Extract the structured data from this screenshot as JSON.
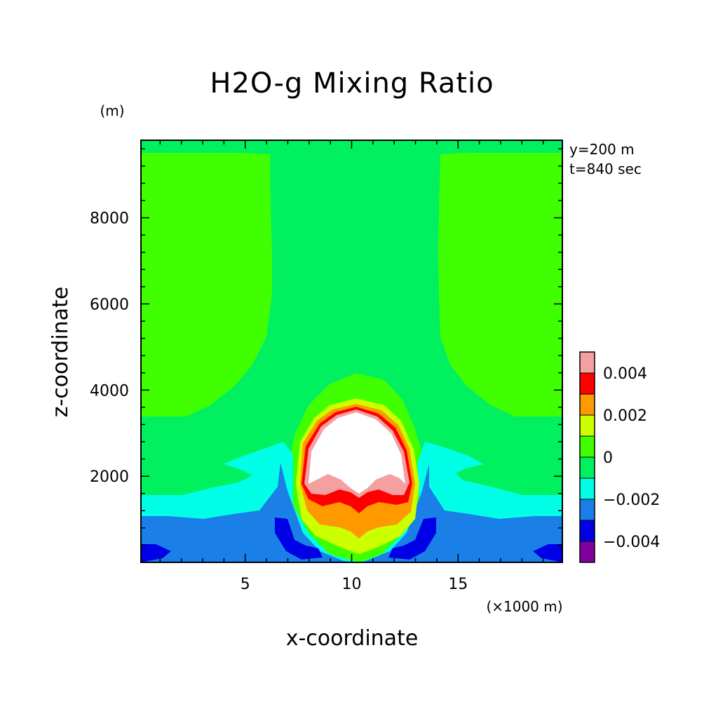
{
  "chart_data": {
    "type": "heatmap",
    "title": "H2O-g Mixing Ratio",
    "xlabel": "x-coordinate",
    "ylabel": "z-coordinate",
    "x_unit": "(×1000 m)",
    "y_unit": "(m)",
    "annotations": [
      "y=200 m",
      "t=840 sec"
    ],
    "xlim": [
      0.1,
      19.9
    ],
    "ylim": [
      0,
      9800
    ],
    "xticks": [
      5,
      10,
      15
    ],
    "xtick_labels": [
      "5",
      "10",
      "15"
    ],
    "yticks": [
      2000,
      4000,
      6000,
      8000
    ],
    "ytick_labels": [
      "2000",
      "4000",
      "6000",
      "8000"
    ],
    "colorbar": {
      "levels": [
        -0.005,
        -0.004,
        -0.003,
        -0.002,
        -0.001,
        0,
        0.001,
        0.002,
        0.003,
        0.004,
        0.005
      ],
      "colors": [
        "#8000a0",
        "#0000e6",
        "#1a7fe6",
        "#00ffe6",
        "#00f060",
        "#40ff00",
        "#ccff00",
        "#ff9900",
        "#ff0000",
        "#f4a0a0"
      ],
      "tick_values": [
        -0.004,
        -0.002,
        0,
        0.002,
        0.004
      ],
      "tick_labels": [
        "−0.004",
        "−0.002",
        "0",
        "0.002",
        "0.004"
      ]
    },
    "field_colors": {
      "above_max": "#ffffff"
    }
  }
}
